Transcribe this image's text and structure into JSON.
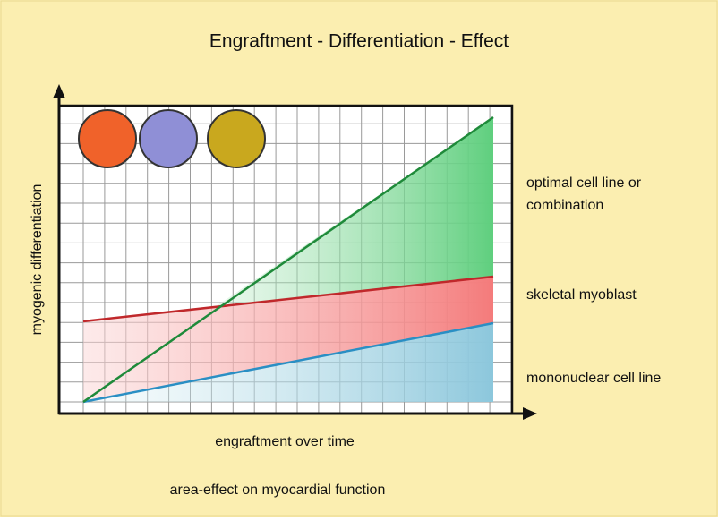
{
  "title": "Engraftment - Differentiation - Effect",
  "y_axis_label": "myogenic differentiation",
  "x_axis_label": "engraftment over time",
  "series_labels": [
    [
      "optimal cell line or",
      "combination"
    ],
    [
      "skeletal myoblast"
    ],
    [
      "mononuclear cell line"
    ]
  ],
  "caption": "area-effect on myocardial function"
}
